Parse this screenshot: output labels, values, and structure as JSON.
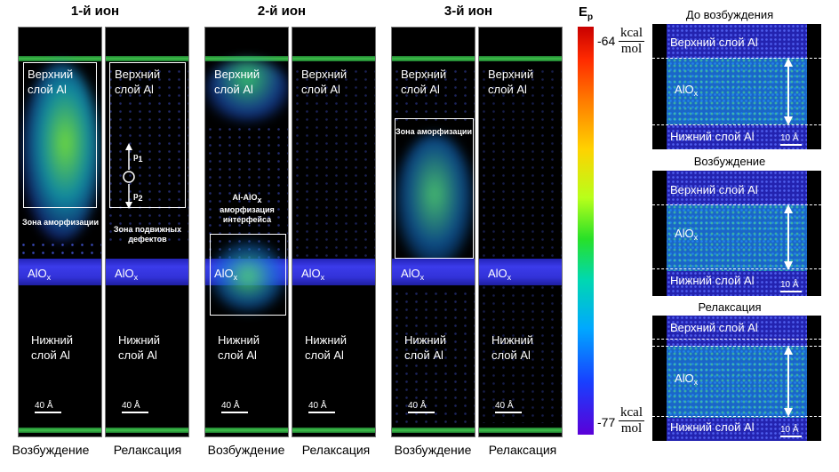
{
  "headers": [
    "1-й ион",
    "2-й ион",
    "3-й ион"
  ],
  "column_labels": [
    "Возбуждение",
    "Релаксация",
    "Возбуждение",
    "Релаксация",
    "Возбуждение",
    "Релаксация"
  ],
  "panel_text": {
    "upper_layer": "Верхний слой Al",
    "lower_layer": "Нижний слой Al",
    "oxide": "AlO",
    "oxide_sub": "x",
    "scale": "40 Å",
    "p1": "p",
    "p1_sub": "1",
    "p2": "p",
    "p2_sub": "2",
    "amorph_zone": "Зона аморфизации",
    "mobile_defects": "Зона подвижных дефектов",
    "interface_amorph": "Al-AlO",
    "interface_amorph_sub": "x",
    "interface_amorph_rest": "аморфизация интерфейса",
    "amorph_zone_3": "Зона аморфизации"
  },
  "colorbar": {
    "label": "E",
    "label_sub": "p",
    "top_value": "-64",
    "bottom_value": "-77",
    "unit_num": "kcal",
    "unit_den": "mol",
    "colors": [
      "#c80000",
      "#ffd200",
      "#28e028",
      "#00a8ff",
      "#5a00d8"
    ]
  },
  "right_panels": [
    {
      "title": "До возбуждения",
      "top": "Верхний слой Al",
      "mid": "AlO",
      "mid_sub": "x",
      "bottom": "Нижний слой Al",
      "scale": "10 Å"
    },
    {
      "title": "Возбуждение",
      "top": "Верхний слой Al",
      "mid": "AlO",
      "mid_sub": "x",
      "bottom": "Нижний слой Al",
      "scale": "10 Å"
    },
    {
      "title": "Релаксация",
      "top": "Верхний слой Al",
      "mid": "AlO",
      "mid_sub": "x",
      "bottom": "Нижний слой Al",
      "scale": "10 Å"
    }
  ]
}
